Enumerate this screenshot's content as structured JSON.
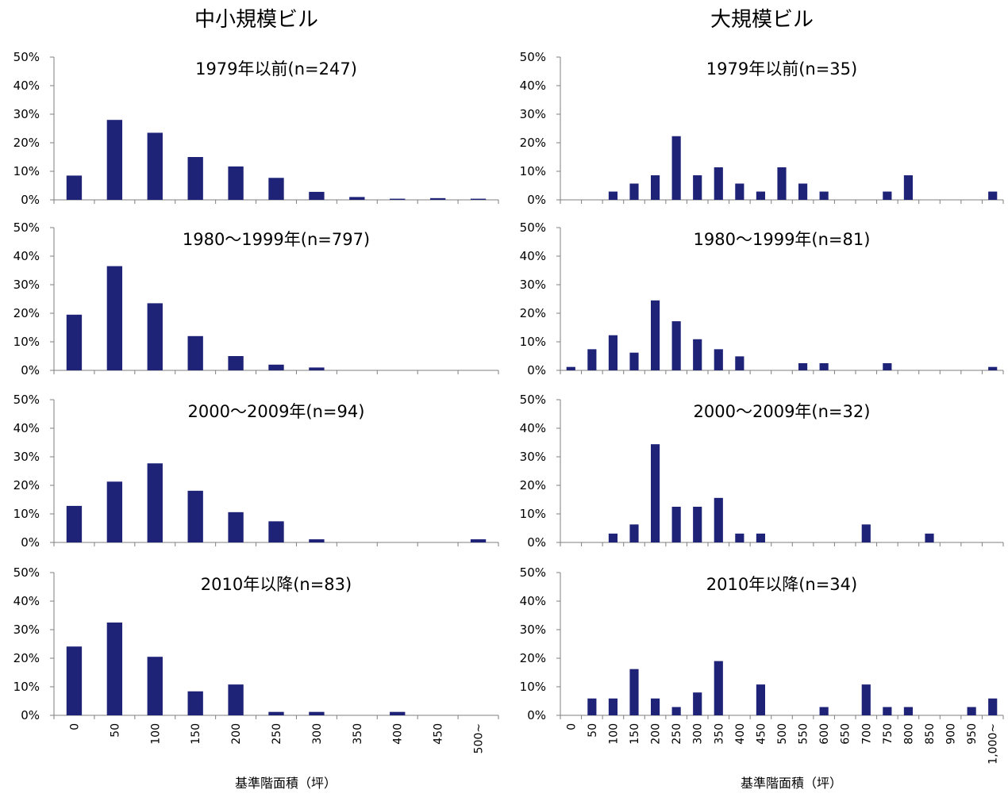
{
  "columns": [
    {
      "title": "中小規模ビル"
    },
    {
      "title": "大規模ビル"
    }
  ],
  "y_ticks": [
    "0%",
    "10%",
    "20%",
    "30%",
    "40%",
    "50%"
  ],
  "xlabel": "基準階面積（坪）",
  "colors": {
    "bar": "#1f2378",
    "axis": "#7f7f7f"
  },
  "chart_data": [
    {
      "type": "bar",
      "column": 0,
      "title": "1979年以前(n=247)",
      "ylim": [
        0,
        50
      ],
      "grid": false,
      "categories": [
        "0",
        "50",
        "100",
        "150",
        "200",
        "250",
        "300",
        "350",
        "400",
        "450",
        "500~"
      ],
      "values": [
        8.5,
        28.0,
        23.5,
        15.0,
        11.7,
        7.7,
        2.8,
        1.0,
        0.4,
        0.6,
        0.4
      ]
    },
    {
      "type": "bar",
      "column": 1,
      "title": "1979年以前(n=35)",
      "ylim": [
        0,
        50
      ],
      "grid": false,
      "categories": [
        "0",
        "50",
        "100",
        "150",
        "200",
        "250",
        "300",
        "350",
        "400",
        "450",
        "500",
        "550",
        "600",
        "650",
        "700",
        "750",
        "800",
        "850",
        "900",
        "950",
        "1,000~"
      ],
      "values": [
        0,
        0,
        2.9,
        5.7,
        8.6,
        22.3,
        8.6,
        11.4,
        5.7,
        2.9,
        11.4,
        5.7,
        2.9,
        0,
        0,
        2.9,
        8.6,
        0,
        0,
        0,
        2.9
      ]
    },
    {
      "type": "bar",
      "column": 0,
      "title": "1980～1999年(n=797)",
      "ylim": [
        0,
        50
      ],
      "grid": false,
      "categories": [
        "0",
        "50",
        "100",
        "150",
        "200",
        "250",
        "300",
        "350",
        "400",
        "450",
        "500~"
      ],
      "values": [
        19.5,
        36.5,
        23.5,
        12.0,
        5.0,
        2.0,
        1.0,
        0,
        0,
        0,
        0
      ]
    },
    {
      "type": "bar",
      "column": 1,
      "title": "1980～1999年(n=81)",
      "ylim": [
        0,
        50
      ],
      "grid": false,
      "categories": [
        "0",
        "50",
        "100",
        "150",
        "200",
        "250",
        "300",
        "350",
        "400",
        "450",
        "500",
        "550",
        "600",
        "650",
        "700",
        "750",
        "800",
        "850",
        "900",
        "950",
        "1,000~"
      ],
      "values": [
        1.2,
        7.4,
        12.3,
        6.2,
        24.5,
        17.2,
        10.9,
        7.4,
        4.9,
        0,
        0,
        2.5,
        2.5,
        0,
        0,
        2.5,
        0,
        0,
        0,
        0,
        1.2
      ]
    },
    {
      "type": "bar",
      "column": 0,
      "title": "2000～2009年(n=94)",
      "ylim": [
        0,
        50
      ],
      "grid": false,
      "categories": [
        "0",
        "50",
        "100",
        "150",
        "200",
        "250",
        "300",
        "350",
        "400",
        "450",
        "500~"
      ],
      "values": [
        12.8,
        21.3,
        27.7,
        18.1,
        10.6,
        7.4,
        1.1,
        0,
        0,
        0,
        1.1
      ]
    },
    {
      "type": "bar",
      "column": 1,
      "title": "2000～2009年(n=32)",
      "ylim": [
        0,
        50
      ],
      "grid": false,
      "categories": [
        "0",
        "50",
        "100",
        "150",
        "200",
        "250",
        "300",
        "350",
        "400",
        "450",
        "500",
        "550",
        "600",
        "650",
        "700",
        "750",
        "800",
        "850",
        "900",
        "950",
        "1,000~"
      ],
      "values": [
        0,
        0,
        3.1,
        6.3,
        34.4,
        12.5,
        12.5,
        15.6,
        3.1,
        3.1,
        0,
        0,
        0,
        0,
        6.3,
        0,
        0,
        3.1,
        0,
        0,
        0
      ]
    },
    {
      "type": "bar",
      "column": 0,
      "title": "2010年以降(n=83)",
      "ylim": [
        0,
        50
      ],
      "grid": false,
      "categories": [
        "0",
        "50",
        "100",
        "150",
        "200",
        "250",
        "300",
        "350",
        "400",
        "450",
        "500~"
      ],
      "values": [
        24.1,
        32.5,
        20.5,
        8.4,
        10.8,
        1.2,
        1.2,
        0,
        1.2,
        0,
        0
      ]
    },
    {
      "type": "bar",
      "column": 1,
      "title": "2010年以降(n=34)",
      "ylim": [
        0,
        50
      ],
      "grid": false,
      "categories": [
        "0",
        "50",
        "100",
        "150",
        "200",
        "250",
        "300",
        "350",
        "400",
        "450",
        "500",
        "550",
        "600",
        "650",
        "700",
        "750",
        "800",
        "850",
        "900",
        "950",
        "1,000~"
      ],
      "values": [
        0,
        5.9,
        5.9,
        16.2,
        5.9,
        2.9,
        8.0,
        19.0,
        0,
        10.8,
        0,
        0,
        2.9,
        0,
        10.8,
        2.9,
        2.9,
        0,
        0,
        2.9,
        5.9
      ]
    }
  ]
}
